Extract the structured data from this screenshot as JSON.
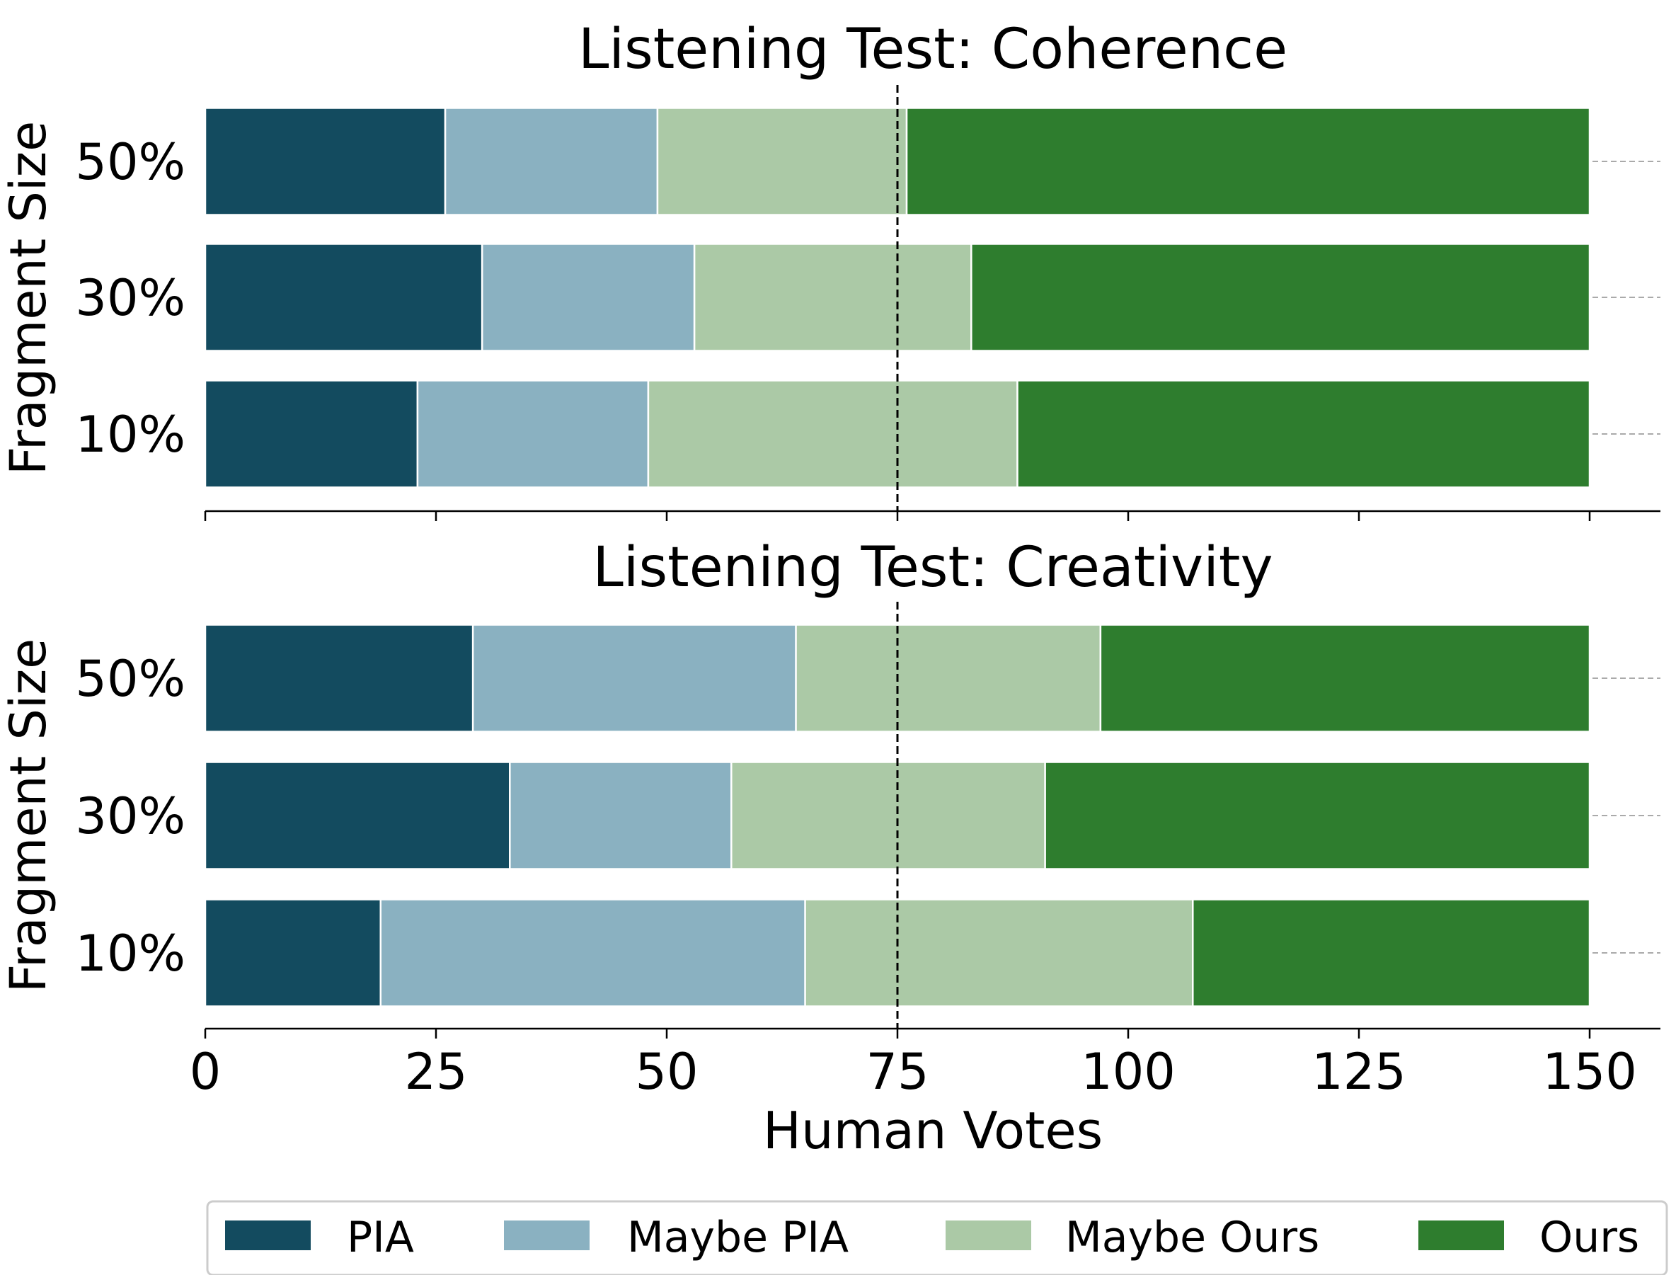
{
  "chart_data": [
    {
      "type": "bar",
      "orientation": "horizontal",
      "stacked": true,
      "title": "Listening Test: Coherence",
      "ylabel": "Fragment Size",
      "xlabel": "",
      "categories": [
        "50%",
        "30%",
        "10%"
      ],
      "series": [
        {
          "name": "PIA",
          "values": [
            26,
            30,
            23
          ]
        },
        {
          "name": "Maybe PIA",
          "values": [
            23,
            23,
            25
          ]
        },
        {
          "name": "Maybe Ours",
          "values": [
            27,
            30,
            40
          ]
        },
        {
          "name": "Ours",
          "values": [
            74,
            67,
            62
          ]
        }
      ],
      "xlim": [
        0,
        157.5
      ],
      "reference_line_x": 75
    },
    {
      "type": "bar",
      "orientation": "horizontal",
      "stacked": true,
      "title": "Listening Test: Creativity",
      "ylabel": "Fragment Size",
      "xlabel": "Human Votes",
      "categories": [
        "50%",
        "30%",
        "10%"
      ],
      "series": [
        {
          "name": "PIA",
          "values": [
            29,
            33,
            19
          ]
        },
        {
          "name": "Maybe PIA",
          "values": [
            35,
            24,
            46
          ]
        },
        {
          "name": "Maybe Ours",
          "values": [
            33,
            34,
            42
          ]
        },
        {
          "name": "Ours",
          "values": [
            53,
            59,
            43
          ]
        }
      ],
      "xlim": [
        0,
        157.5
      ],
      "xticks": [
        "0",
        "25",
        "50",
        "75",
        "100",
        "125",
        "150"
      ],
      "reference_line_x": 75
    }
  ],
  "legend": {
    "placement": "bottom",
    "items": [
      "PIA",
      "Maybe PIA",
      "Maybe Ours",
      "Ours"
    ]
  },
  "colors": {
    "PIA": "#134b5f",
    "Maybe PIA": "#8ab1c1",
    "Maybe Ours": "#abc9a6",
    "Ours": "#2e7d2e"
  }
}
